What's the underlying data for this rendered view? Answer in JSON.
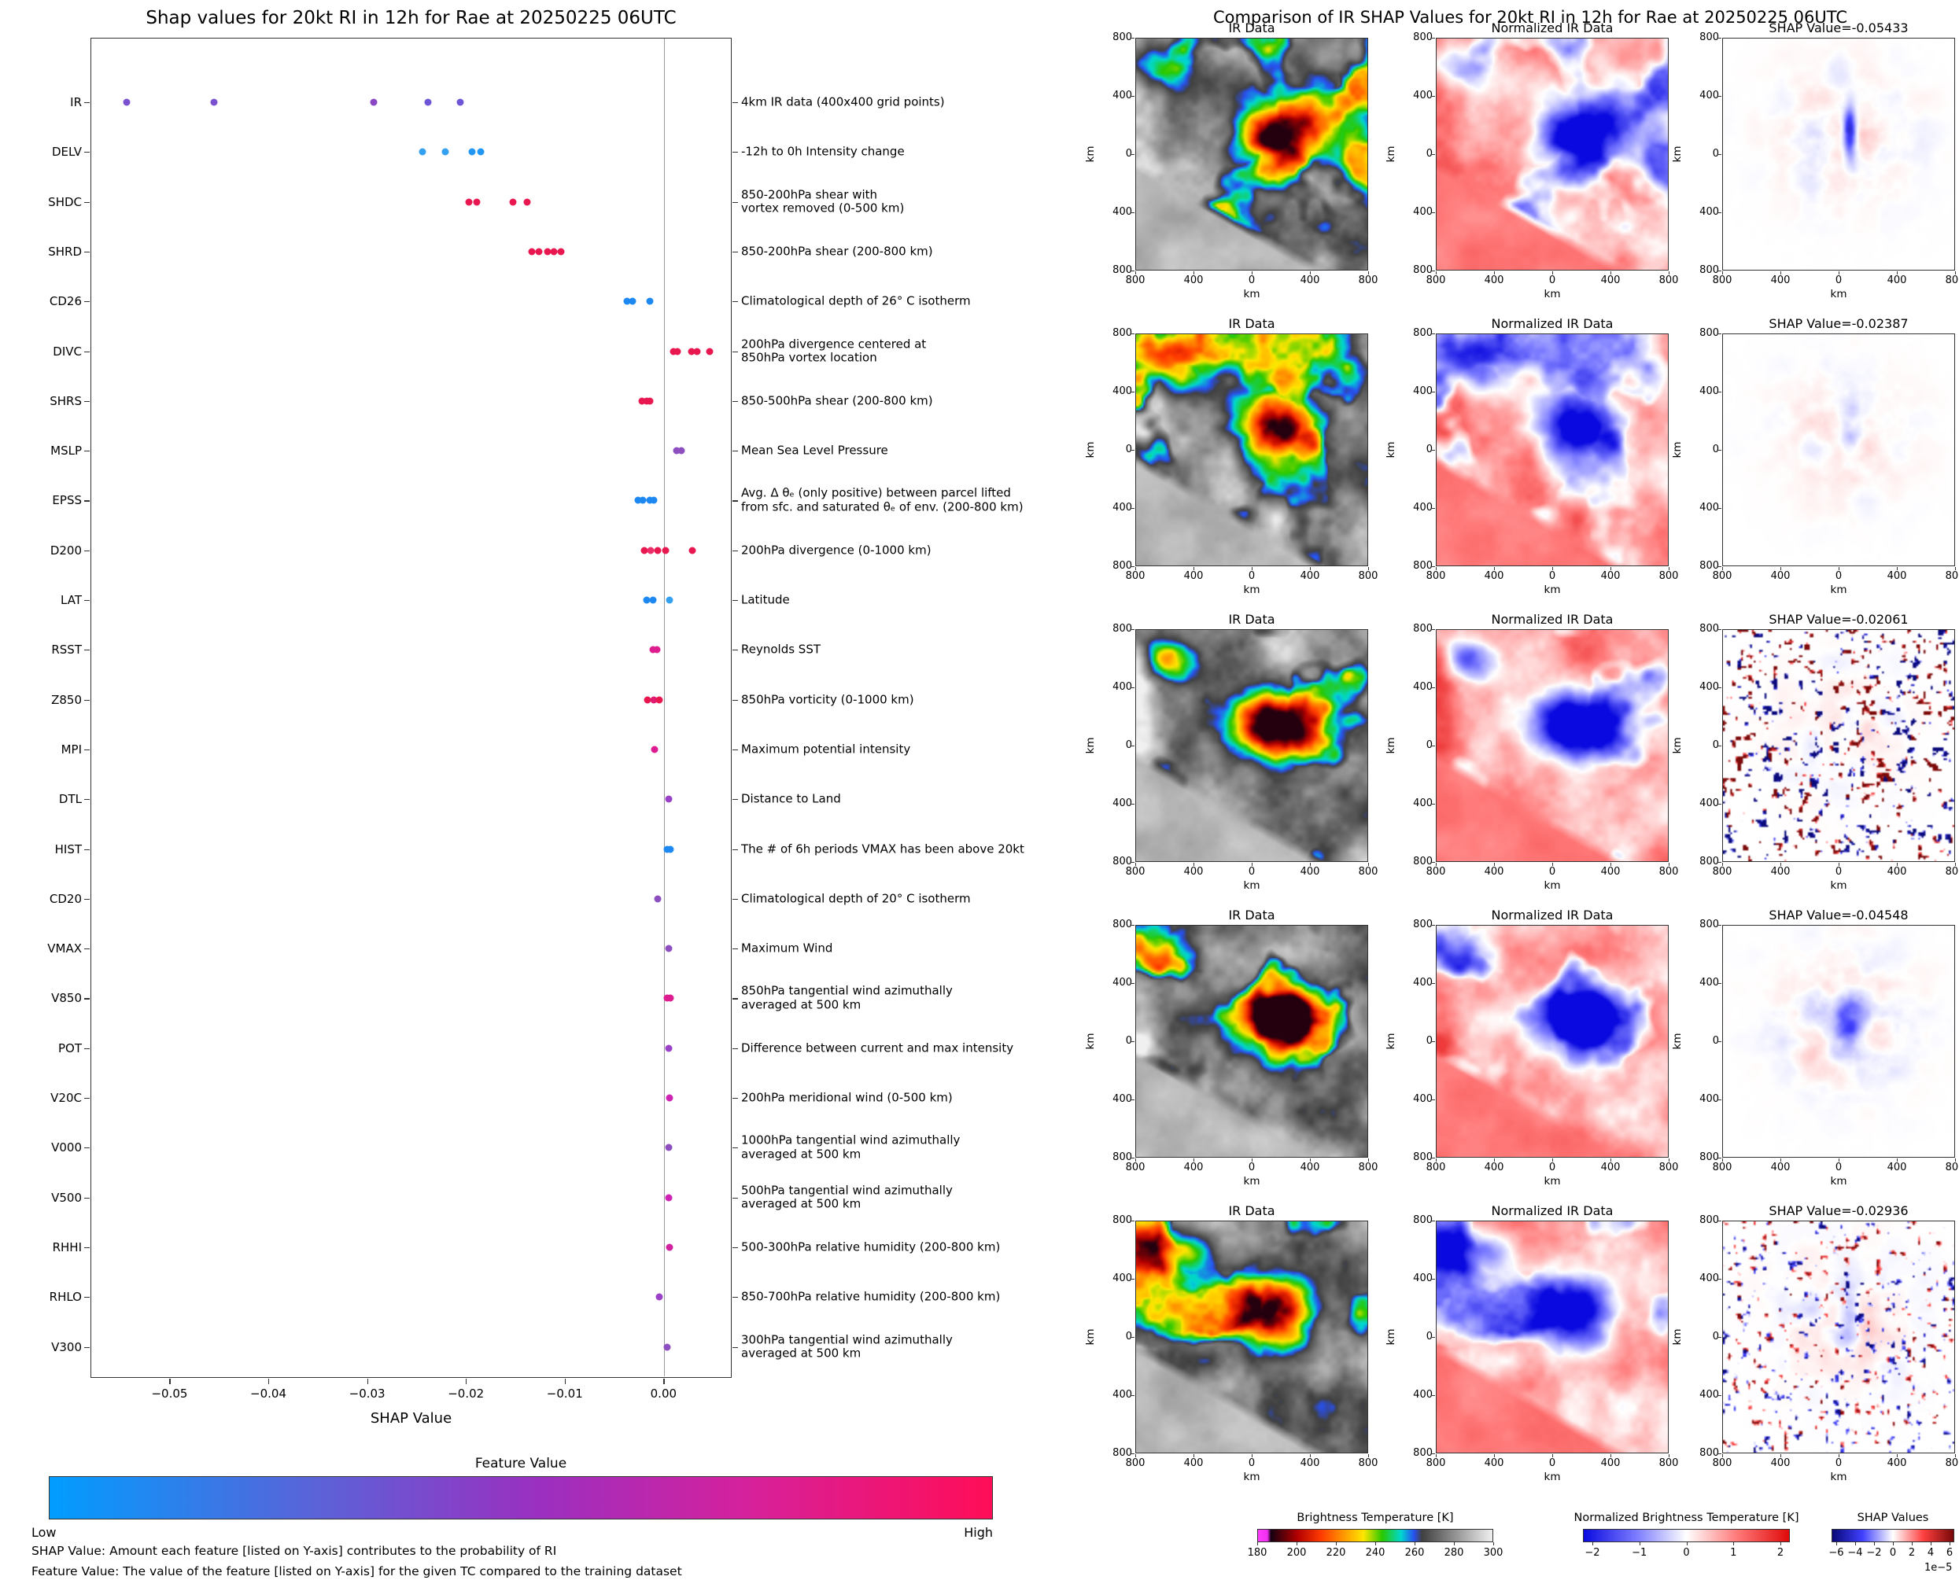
{
  "left_panel": {
    "title": "Shap values for 20kt RI in 12h for Rae at 20250225 06UTC",
    "xlabel": "SHAP Value",
    "x_ticks": [
      {
        "v": -0.05,
        "label": "−0.05"
      },
      {
        "v": -0.04,
        "label": "−0.04"
      },
      {
        "v": -0.03,
        "label": "−0.03"
      },
      {
        "v": -0.02,
        "label": "−0.02"
      },
      {
        "v": -0.01,
        "label": "−0.01"
      },
      {
        "v": 0.0,
        "label": "0.00"
      }
    ],
    "colorbar": {
      "title": "Feature Value",
      "low_label": "Low",
      "high_label": "High",
      "gradient": [
        [
          0,
          "#009dff"
        ],
        [
          0.28,
          "#5a63d8"
        ],
        [
          0.52,
          "#9b2fc0"
        ],
        [
          0.74,
          "#d6219c"
        ],
        [
          1,
          "#ff0d57"
        ]
      ]
    },
    "footnotes": [
      "SHAP Value: Amount each feature [listed on Y-axis] contributes to the probability of RI",
      "Feature Value: The value of the feature [listed on Y-axis] for the given TC compared to the training dataset"
    ]
  },
  "chart_data": [
    {
      "type": "scatter",
      "subtype": "shap-beeswarm",
      "title": "Shap values for 20kt RI in 12h for Rae at 20250225 06UTC",
      "xlabel": "SHAP Value",
      "xlim": [
        -0.058,
        0.0069
      ],
      "x_ticks": [
        -0.05,
        -0.04,
        -0.03,
        -0.02,
        -0.01,
        0.0
      ],
      "color_legend": {
        "label": "Feature Value",
        "low": "Low",
        "high": "High"
      },
      "features": [
        {
          "name": "IR",
          "desc": "4km IR data (400x400 grid points)",
          "points": [
            {
              "v": -0.05433,
              "c": "#7a52cf"
            },
            {
              "v": -0.04548,
              "c": "#7a52cf"
            },
            {
              "v": -0.02936,
              "c": "#8a47c4"
            },
            {
              "v": -0.02387,
              "c": "#6d55d6"
            },
            {
              "v": -0.02061,
              "c": "#6d55d6"
            }
          ]
        },
        {
          "name": "DELV",
          "desc": "-12h to 0h Intensity change",
          "points": [
            {
              "v": -0.0244,
              "c": "#35a0f0"
            },
            {
              "v": -0.0221,
              "c": "#35a0f0"
            },
            {
              "v": -0.0194,
              "c": "#2196f3"
            },
            {
              "v": -0.0185,
              "c": "#2196f3"
            }
          ]
        },
        {
          "name": "SHDC",
          "desc": "850-200hPa shear with\nvortex removed (0-500 km)",
          "points": [
            {
              "v": -0.0197,
              "c": "#e8174f"
            },
            {
              "v": -0.0189,
              "c": "#e8174f"
            },
            {
              "v": -0.0152,
              "c": "#e8174f"
            },
            {
              "v": -0.0138,
              "c": "#e8174f"
            }
          ]
        },
        {
          "name": "SHRD",
          "desc": "850-200hPa shear (200-800 km)",
          "points": [
            {
              "v": -0.0133,
              "c": "#e8174f"
            },
            {
              "v": -0.0126,
              "c": "#e8174f"
            },
            {
              "v": -0.0117,
              "c": "#e8174f"
            },
            {
              "v": -0.0111,
              "c": "#e8174f"
            },
            {
              "v": -0.0104,
              "c": "#e8174f"
            }
          ]
        },
        {
          "name": "CD26",
          "desc": "Climatological depth of 26° C isotherm",
          "points": [
            {
              "v": -0.0037,
              "c": "#1d88f2"
            },
            {
              "v": -0.0031,
              "c": "#1d88f2"
            },
            {
              "v": -0.0014,
              "c": "#1d88f2"
            }
          ]
        },
        {
          "name": "DIVC",
          "desc": "200hPa divergence centered at\n850hPa vortex location",
          "points": [
            {
              "v": 0.001,
              "c": "#e8174f"
            },
            {
              "v": 0.0014,
              "c": "#e8174f"
            },
            {
              "v": 0.0028,
              "c": "#e8174f"
            },
            {
              "v": 0.0034,
              "c": "#e8174f"
            },
            {
              "v": 0.0047,
              "c": "#e8174f"
            }
          ]
        },
        {
          "name": "SHRS",
          "desc": "850-500hPa shear (200-800 km)",
          "points": [
            {
              "v": -0.0022,
              "c": "#e8174f"
            },
            {
              "v": -0.0017,
              "c": "#e8174f"
            },
            {
              "v": -0.0014,
              "c": "#e8174f"
            }
          ]
        },
        {
          "name": "MSLP",
          "desc": "Mean Sea Level Pressure",
          "points": [
            {
              "v": 0.0013,
              "c": "#8d4fc0"
            },
            {
              "v": 0.0018,
              "c": "#8d4fc0"
            }
          ]
        },
        {
          "name": "EPSS",
          "desc": "Avg. Δ θₑ (only positive) between parcel lifted\nfrom sfc. and saturated θₑ of env. (200-800 km)",
          "points": [
            {
              "v": -0.0026,
              "c": "#1d88f2"
            },
            {
              "v": -0.0021,
              "c": "#1d88f2"
            },
            {
              "v": -0.0014,
              "c": "#1d88f2"
            },
            {
              "v": -0.001,
              "c": "#1d88f2"
            }
          ]
        },
        {
          "name": "D200",
          "desc": "200hPa divergence (0-1000 km)",
          "points": [
            {
              "v": -0.0019,
              "c": "#e8174f"
            },
            {
              "v": -0.0013,
              "c": "#ec2d6a"
            },
            {
              "v": -0.0006,
              "c": "#e8174f"
            },
            {
              "v": 0.0002,
              "c": "#e8174f"
            },
            {
              "v": 0.0029,
              "c": "#e8174f"
            }
          ]
        },
        {
          "name": "LAT",
          "desc": "Latitude",
          "points": [
            {
              "v": -0.0017,
              "c": "#1d88f2"
            },
            {
              "v": -0.0011,
              "c": "#1d88f2"
            },
            {
              "v": 0.0006,
              "c": "#35a0f0"
            }
          ]
        },
        {
          "name": "RSST",
          "desc": "Reynolds SST",
          "points": [
            {
              "v": -0.0011,
              "c": "#dd1d8f"
            },
            {
              "v": -0.0007,
              "c": "#dd1d8f"
            }
          ]
        },
        {
          "name": "Z850",
          "desc": "850hPa vorticity (0-1000 km)",
          "points": [
            {
              "v": -0.0016,
              "c": "#e8174f"
            },
            {
              "v": -0.001,
              "c": "#e01a6e"
            },
            {
              "v": -0.0004,
              "c": "#e8174f"
            }
          ]
        },
        {
          "name": "MPI",
          "desc": "Maximum potential intensity",
          "points": [
            {
              "v": -0.0009,
              "c": "#dd1d8f"
            }
          ]
        },
        {
          "name": "DTL",
          "desc": "Distance to Land",
          "points": [
            {
              "v": 0.0005,
              "c": "#9942c8"
            }
          ]
        },
        {
          "name": "HIST",
          "desc": "The # of 6h periods VMAX has been above 20kt",
          "points": [
            {
              "v": 0.0004,
              "c": "#1d88f2"
            },
            {
              "v": 0.0007,
              "c": "#1d88f2"
            }
          ]
        },
        {
          "name": "CD20",
          "desc": "Climatological depth of 20° C isotherm",
          "points": [
            {
              "v": -0.0006,
              "c": "#8d4fc0"
            }
          ]
        },
        {
          "name": "VMAX",
          "desc": "Maximum Wind",
          "points": [
            {
              "v": 0.0005,
              "c": "#8d4fc0"
            }
          ]
        },
        {
          "name": "V850",
          "desc": "850hPa tangential wind azimuthally\naveraged at 500 km",
          "points": [
            {
              "v": 0.0004,
              "c": "#dd1d8f"
            },
            {
              "v": 0.0007,
              "c": "#dd1d8f"
            }
          ]
        },
        {
          "name": "POT",
          "desc": "Difference between current and max intensity",
          "points": [
            {
              "v": 0.0005,
              "c": "#9942c8"
            }
          ]
        },
        {
          "name": "V20C",
          "desc": "200hPa meridional wind (0-500 km)",
          "points": [
            {
              "v": 0.0006,
              "c": "#cf23b4"
            }
          ]
        },
        {
          "name": "V000",
          "desc": "1000hPa tangential wind azimuthally\naveraged at 500 km",
          "points": [
            {
              "v": 0.0005,
              "c": "#8d4fc0"
            }
          ]
        },
        {
          "name": "V500",
          "desc": "500hPa tangential wind azimuthally\naveraged at 500 km",
          "points": [
            {
              "v": 0.0005,
              "c": "#cf23b4"
            }
          ]
        },
        {
          "name": "RHHI",
          "desc": "500-300hPa relative humidity (200-800 km)",
          "points": [
            {
              "v": 0.0006,
              "c": "#d1219f"
            }
          ]
        },
        {
          "name": "RHLO",
          "desc": "850-700hPa relative humidity (200-800 km)",
          "points": [
            {
              "v": -0.0004,
              "c": "#9942c8"
            }
          ]
        },
        {
          "name": "V300",
          "desc": "300hPa tangential wind azimuthally\naveraged at 500 km",
          "points": [
            {
              "v": 0.0004,
              "c": "#8d4fc0"
            }
          ]
        }
      ]
    },
    {
      "type": "heatmap",
      "subtype": "ir-shap-maps",
      "title": "Comparison of IR SHAP Values for 20kt RI in 12h for Rae at 20250225 06UTC",
      "rows": 5,
      "columns": [
        "IR Data",
        "Normalized IR Data",
        "SHAP Values"
      ],
      "shap_values": [
        -0.05433,
        -0.02387,
        -0.02061,
        -0.04548,
        -0.02936
      ],
      "axis_km_range": [
        -800,
        800
      ],
      "colorbar_ranges": {
        "brightness_temperature_K": [
          180,
          300
        ],
        "normalized": [
          -2,
          2
        ],
        "shap": [
          -6e-05,
          6e-05
        ]
      }
    }
  ],
  "right_panel": {
    "title": "Comparison of IR SHAP Values for 20kt RI in 12h for Rae at 20250225 06UTC",
    "map_axis": {
      "ticks": [
        "800",
        "400",
        "0",
        "400",
        "800"
      ],
      "xlabel": "km",
      "ylabel": "km"
    },
    "rows": [
      {
        "ir_title": "IR Data",
        "norm_title": "Normalized IR Data",
        "shap_title": "SHAP Value=-0.05433"
      },
      {
        "ir_title": "IR Data",
        "norm_title": "Normalized IR Data",
        "shap_title": "SHAP Value=-0.02387"
      },
      {
        "ir_title": "IR Data",
        "norm_title": "Normalized IR Data",
        "shap_title": "SHAP Value=-0.02061"
      },
      {
        "ir_title": "IR Data",
        "norm_title": "Normalized IR Data",
        "shap_title": "SHAP Value=-0.04548"
      },
      {
        "ir_title": "IR Data",
        "norm_title": "Normalized IR Data",
        "shap_title": "SHAP Value=-0.02936"
      }
    ],
    "colorbars": [
      {
        "label": "Brightness Temperature [K]",
        "range": [
          180,
          300
        ],
        "ticks": [
          {
            "v": 180,
            "label": "180"
          },
          {
            "v": 200,
            "label": "200"
          },
          {
            "v": 220,
            "label": "220"
          },
          {
            "v": 240,
            "label": "240"
          },
          {
            "v": 260,
            "label": "260"
          },
          {
            "v": 280,
            "label": "280"
          },
          {
            "v": 300,
            "label": "300"
          }
        ],
        "gradient": [
          [
            0,
            "#ff3cff"
          ],
          [
            0.04,
            "#f030f0"
          ],
          [
            0.055,
            "#140010"
          ],
          [
            0.17,
            "#b40000"
          ],
          [
            0.27,
            "#ff3c00"
          ],
          [
            0.37,
            "#ff9c00"
          ],
          [
            0.45,
            "#ffe600"
          ],
          [
            0.53,
            "#28c800"
          ],
          [
            0.61,
            "#00d8d0"
          ],
          [
            0.665,
            "#2850f0"
          ],
          [
            0.7,
            "#404040"
          ],
          [
            1,
            "#f0f0f0"
          ]
        ]
      },
      {
        "label": "Normalized Brightness Temperature [K]",
        "range": [
          -2.2,
          2.2
        ],
        "ticks": [
          {
            "v": -2,
            "label": "−2"
          },
          {
            "v": -1,
            "label": "−1"
          },
          {
            "v": 0,
            "label": "0"
          },
          {
            "v": 1,
            "label": "1"
          },
          {
            "v": 2,
            "label": "2"
          }
        ],
        "gradient": [
          [
            0,
            "#0a0ae0"
          ],
          [
            0.25,
            "#7878ff"
          ],
          [
            0.5,
            "#ffffff"
          ],
          [
            0.75,
            "#ff7878"
          ],
          [
            1,
            "#e00a0a"
          ]
        ]
      },
      {
        "label": "SHAP Values",
        "range": [
          -6.5,
          6.5
        ],
        "exponent": "1e−5",
        "ticks": [
          {
            "v": -6,
            "label": "−6"
          },
          {
            "v": -4,
            "label": "−4"
          },
          {
            "v": -2,
            "label": "−2"
          },
          {
            "v": 0,
            "label": "0"
          },
          {
            "v": 2,
            "label": "2"
          },
          {
            "v": 4,
            "label": "4"
          },
          {
            "v": 6,
            "label": "6"
          }
        ],
        "gradient": [
          [
            0,
            "#080878"
          ],
          [
            0.25,
            "#4040ff"
          ],
          [
            0.5,
            "#ffffff"
          ],
          [
            0.75,
            "#ff4040"
          ],
          [
            1,
            "#780808"
          ]
        ]
      }
    ]
  }
}
